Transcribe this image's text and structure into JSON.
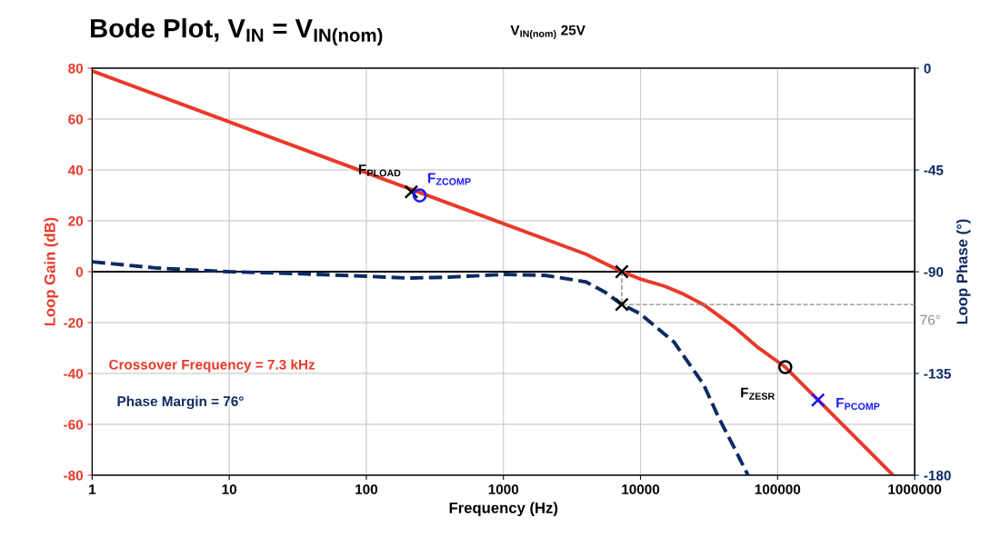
{
  "chart_data": {
    "type": "line",
    "title": "Bode Plot, V$_{IN}$ = V$_{IN(nom)}$",
    "subtitle": "V$_{IN(nom)}$ 25V",
    "xlabel": "Frequency (Hz)",
    "ylabel": "Loop Gain (dB)",
    "y2label": "Loop Phase (°)",
    "log": "x",
    "xlim": [
      1,
      1000000
    ],
    "xticks": [
      1,
      10,
      100,
      1000,
      10000,
      100000,
      1000000
    ],
    "ylim": [
      -80,
      80
    ],
    "yticks": [
      -80,
      -60,
      -40,
      -20,
      0,
      20,
      40,
      60,
      80
    ],
    "y2lim": [
      -180,
      0
    ],
    "y2ticks": [
      -180,
      -135,
      -90,
      -45,
      0
    ],
    "grid": true,
    "legend": false,
    "ref_lines": [
      {
        "axis": "y",
        "value": 0,
        "color": "#000000",
        "line_style": "solid"
      }
    ],
    "annotations": [
      "Crossover Frequency = 7.3 kHz",
      "Phase Margin = 76°"
    ],
    "series": [
      {
        "color": "#e8392a",
        "line_style": "solid",
        "x": [
          1,
          10,
          100,
          1000,
          4000,
          7300,
          10000,
          15000,
          20000,
          28800,
          48400,
          70000,
          113800,
          197000,
          400000,
          690000
        ],
        "values": [
          78.9,
          58.9,
          38.9,
          18.9,
          6.9,
          0,
          -2.9,
          -5.7,
          -8.5,
          -12.9,
          -21.8,
          -29.3,
          -37.5,
          -50.4,
          -67,
          -79.8
        ]
      },
      {
        "type": "line",
        "axis": "y2",
        "color": "#0d2a63",
        "line_style": "dashed",
        "x": [
          1,
          3,
          10,
          30,
          100,
          200,
          400,
          1000,
          2000,
          4000,
          5500,
          7300,
          9900,
          17500,
          28800,
          37300,
          48400,
          60800
        ],
        "values": [
          -85.6,
          -88.4,
          -90,
          -90.8,
          -92,
          -92.8,
          -92.4,
          -91.2,
          -91.6,
          -94.5,
          -99,
          -104.5,
          -108.5,
          -121,
          -139.8,
          -154.7,
          -168,
          -180
        ]
      },
      {
        "type": "line",
        "axis": "y2",
        "name": "76°",
        "color": "#8c8c8c",
        "line_style": "dashed",
        "x": [
          7300,
          7300,
          1000000
        ],
        "values": [
          -90,
          -104.5,
          -104.5
        ]
      },
      {
        "type": "scatter",
        "axis": "y2",
        "color": "#000000",
        "marker": "cross",
        "x": [
          7300,
          7300
        ],
        "values": [
          -90,
          -104.5
        ]
      },
      {
        "type": "scatter",
        "name": "F$_{PLOAD}$",
        "color": "#000000",
        "marker": "cross",
        "x": [
          213
        ],
        "values": [
          31.4
        ]
      },
      {
        "type": "scatter",
        "name": "F$_{ZCOMP}$",
        "color": "#1a1aff",
        "marker": "circle",
        "x": [
          245
        ],
        "values": [
          30
        ]
      },
      {
        "type": "scatter",
        "name": "F$_{ZESR}$",
        "color": "#000000",
        "marker": "circle",
        "x": [
          113800
        ],
        "values": [
          -37.5
        ]
      },
      {
        "type": "scatter",
        "name": "F$_{PCOMP}$",
        "color": "#1a1aff",
        "marker": "cross",
        "x": [
          197000
        ],
        "values": [
          -50.4
        ]
      }
    ]
  }
}
